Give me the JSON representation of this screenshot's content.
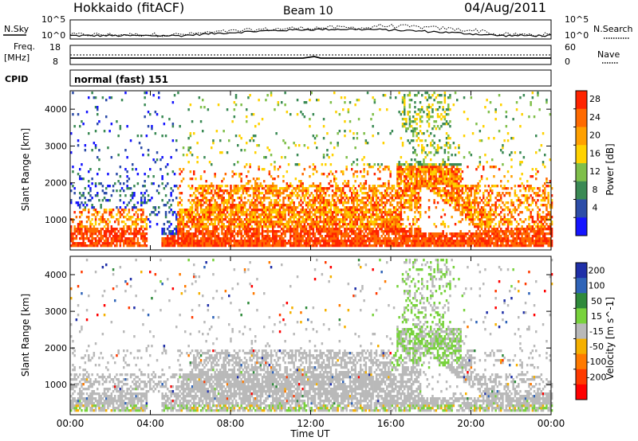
{
  "header": {
    "title": "Hokkaido (fitACF)",
    "beam": "Beam 10",
    "date": "04/Aug/2011"
  },
  "noise_panel": {
    "left_label": "N.Sky",
    "right_label": "N.Search",
    "left_ticks": [
      "10^5",
      "10^0"
    ],
    "right_ticks": [
      "10^5",
      "10^0"
    ]
  },
  "freq_panel": {
    "left_label_1": "Freq.",
    "left_label_2": "[MHz]",
    "left_ticks": [
      "18",
      "8"
    ],
    "right_label": "Nave",
    "right_ticks": [
      "60",
      "0"
    ]
  },
  "cpid_panel": {
    "label": "CPID",
    "text": "normal (fast) 151"
  },
  "time_axis": {
    "label": "Time UT",
    "ticks": [
      "00:00",
      "04:00",
      "08:00",
      "12:00",
      "16:00",
      "20:00",
      "00:00"
    ]
  },
  "colors": {
    "power_scale": [
      "#1414ff",
      "#2d4da8",
      "#3b8a55",
      "#7fbf4a",
      "#ffd200",
      "#ffa000",
      "#ff6a00",
      "#ff2400"
    ],
    "velocity_scale": [
      "#1f2fa8",
      "#2f64b8",
      "#2f8a3b",
      "#78d23c",
      "#b9b9b9",
      "#f5b000",
      "#ff7a00",
      "#ff3a00",
      "#ff0000"
    ]
  },
  "chart_data": [
    {
      "type": "heatmap",
      "panel": "power",
      "ylabel": "Slant Range [km]",
      "ylim": [
        180,
        4500
      ],
      "yticks": [
        1000,
        2000,
        3000,
        4000
      ],
      "xlim_hours": [
        0,
        24
      ],
      "colorbar": {
        "label": "Power [dB]",
        "range": [
          0,
          32
        ],
        "ticks": [
          "4",
          "8",
          "12",
          "16",
          "20",
          "24",
          "28"
        ]
      },
      "features": [
        {
          "t0": 0.0,
          "t1": 24.0,
          "r0": 250,
          "r1": 750,
          "level": "high"
        },
        {
          "t0": 5.3,
          "t1": 17.5,
          "r0": 900,
          "r1": 1900,
          "level": "high"
        },
        {
          "t0": 16.5,
          "t1": 21.0,
          "r0": 1100,
          "r1": 2500,
          "level": "high"
        },
        {
          "t0": 17.0,
          "t1": 19.0,
          "r0": 3000,
          "r1": 4000,
          "level": "low"
        }
      ]
    },
    {
      "type": "heatmap",
      "panel": "velocity",
      "ylabel": "Slant Range [km]",
      "ylim": [
        180,
        4500
      ],
      "yticks": [
        1000,
        2000,
        3000,
        4000
      ],
      "xlim_hours": [
        0,
        24
      ],
      "colorbar": {
        "label": "Velocity [m s^-1]",
        "range": [
          -250,
          250
        ],
        "ticks": [
          "200",
          "100",
          "50",
          "15",
          "-15",
          "-50",
          "-100",
          "-200"
        ]
      }
    }
  ]
}
